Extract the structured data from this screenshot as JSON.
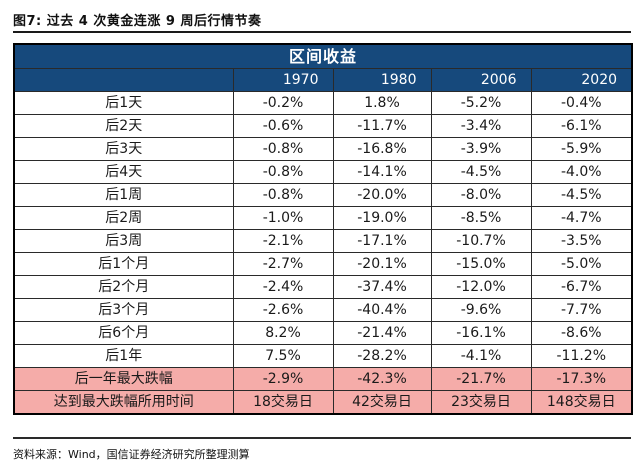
{
  "title": "图7: 过去 4 次黄金连涨 9 周后行情节奏",
  "source": "资料来源：Wind，国信证券经济研究所整理测算",
  "colors": {
    "header_bg": "#16497C",
    "header_text": "#ffffff",
    "highlight_bg": "#F5ACA9",
    "border": "#2a2a2a",
    "text": "#1a1a1a"
  },
  "chart_data": {
    "type": "table",
    "title": "区间收益",
    "columns": [
      "",
      "1970",
      "1980",
      "2006",
      "2020"
    ],
    "rows": [
      {
        "label": "后1天",
        "values": [
          "-0.2%",
          "1.8%",
          "-5.2%",
          "-0.4%"
        ],
        "highlight": false
      },
      {
        "label": "后2天",
        "values": [
          "-0.6%",
          "-11.7%",
          "-3.4%",
          "-6.1%"
        ],
        "highlight": false
      },
      {
        "label": "后3天",
        "values": [
          "-0.8%",
          "-16.8%",
          "-3.9%",
          "-5.9%"
        ],
        "highlight": false
      },
      {
        "label": "后4天",
        "values": [
          "-0.8%",
          "-14.1%",
          "-4.5%",
          "-4.0%"
        ],
        "highlight": false
      },
      {
        "label": "后1周",
        "values": [
          "-0.8%",
          "-20.0%",
          "-8.0%",
          "-4.5%"
        ],
        "highlight": false
      },
      {
        "label": "后2周",
        "values": [
          "-1.0%",
          "-19.0%",
          "-8.5%",
          "-4.7%"
        ],
        "highlight": false
      },
      {
        "label": "后3周",
        "values": [
          "-2.1%",
          "-17.1%",
          "-10.7%",
          "-3.5%"
        ],
        "highlight": false
      },
      {
        "label": "后1个月",
        "values": [
          "-2.7%",
          "-20.1%",
          "-15.0%",
          "-5.0%"
        ],
        "highlight": false
      },
      {
        "label": "后2个月",
        "values": [
          "-2.4%",
          "-37.4%",
          "-12.0%",
          "-6.7%"
        ],
        "highlight": false
      },
      {
        "label": "后3个月",
        "values": [
          "-2.6%",
          "-40.4%",
          "-9.6%",
          "-7.7%"
        ],
        "highlight": false
      },
      {
        "label": "后6个月",
        "values": [
          "8.2%",
          "-21.4%",
          "-16.1%",
          "-8.6%"
        ],
        "highlight": false
      },
      {
        "label": "后1年",
        "values": [
          "7.5%",
          "-28.2%",
          "-4.1%",
          "-11.2%"
        ],
        "highlight": false
      },
      {
        "label": "后一年最大跌幅",
        "values": [
          "-2.9%",
          "-42.3%",
          "-21.7%",
          "-17.3%"
        ],
        "highlight": true
      },
      {
        "label": "达到最大跌幅所用时间",
        "values": [
          "18交易日",
          "42交易日",
          "23交易日",
          "148交易日"
        ],
        "highlight": true
      }
    ]
  }
}
